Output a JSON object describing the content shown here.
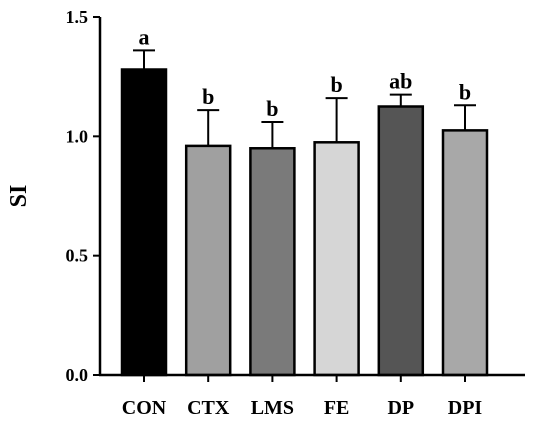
{
  "chart_data": {
    "type": "bar",
    "title": "",
    "xlabel": "",
    "ylabel": "SI",
    "ylim": [
      0,
      1.5
    ],
    "y_ticks": [
      "0.0",
      "0.5",
      "1.0",
      "1.5"
    ],
    "y_tick_values": [
      0,
      0.5,
      1.0,
      1.5
    ],
    "categories": [
      "CON",
      "CTX",
      "LMS",
      "FE",
      "DP",
      "DPI"
    ],
    "values": [
      1.28,
      0.96,
      0.95,
      0.975,
      1.125,
      1.025
    ],
    "errors": [
      0.08,
      0.15,
      0.11,
      0.185,
      0.05,
      0.105
    ],
    "significance": [
      "a",
      "b",
      "b",
      "b",
      "ab",
      "b"
    ],
    "colors": [
      "#000000",
      "#a0a0a0",
      "#7a7a7a",
      "#d6d6d6",
      "#555555",
      "#a8a8a8"
    ],
    "grid": false,
    "legend": "none"
  }
}
